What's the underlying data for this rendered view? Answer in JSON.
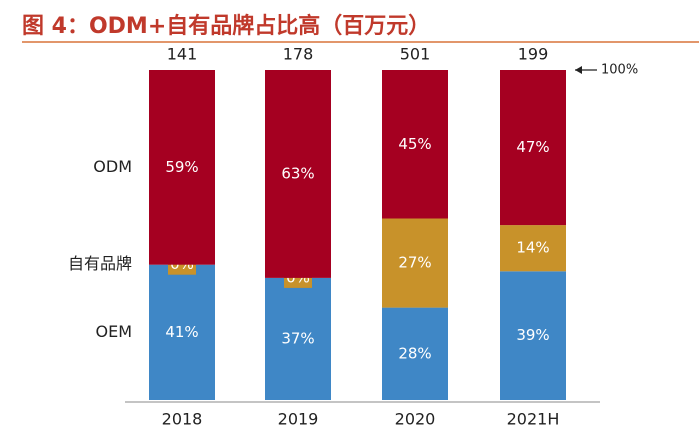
{
  "chart_data": {
    "type": "stacked_bar_percent",
    "title": "图 4：ODM+自有品牌占比高（百万元）",
    "categories": [
      "2018",
      "2019",
      "2020",
      "2021H"
    ],
    "totals": [
      141,
      178,
      501,
      199
    ],
    "annotation": "100%",
    "ylim": [
      0,
      100
    ],
    "series": [
      {
        "name": "OEM",
        "color": "#3f87c6",
        "values": [
          41,
          37,
          28,
          39
        ],
        "value_labels": [
          "41%",
          "37%",
          "28%",
          "39%"
        ]
      },
      {
        "name": "自有品牌",
        "color": "#c8922a",
        "values": [
          0,
          0,
          27,
          14
        ],
        "value_labels": [
          "0%",
          "0%",
          "27%",
          "14%"
        ]
      },
      {
        "name": "ODM",
        "color": "#a50021",
        "values": [
          59,
          63,
          45,
          47
        ],
        "value_labels": [
          "59%",
          "63%",
          "45%",
          "47%"
        ]
      }
    ]
  }
}
